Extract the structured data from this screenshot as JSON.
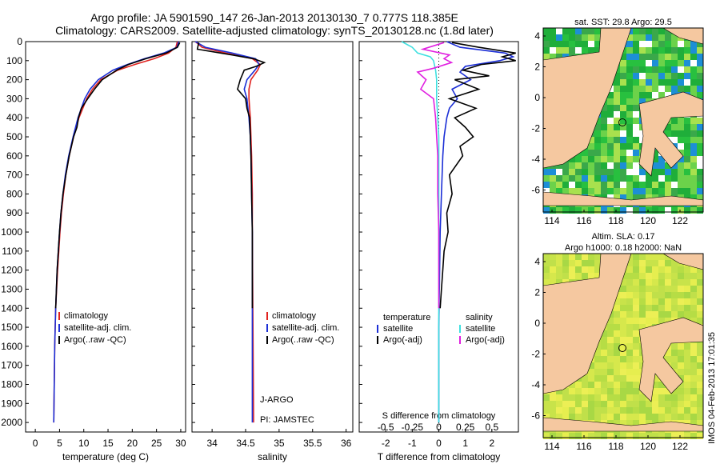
{
  "header": {
    "title_line1": "Argo profile: JA 5901590_147 26-Jan-2013 20130130_7 0.777S 118.385E",
    "title_line2": "Climatology: CARS2009. Satellite-adjusted climatology: synTS_20130128.nc (1.8d later)"
  },
  "colors": {
    "climatology": "#e0221f",
    "satellite": "#1c2fd6",
    "argo": "#000000",
    "satellite_s": "#3fe0e0",
    "argo_s": "#e020e0",
    "land": "#f5c8a0"
  },
  "chart_data": [
    {
      "type": "line",
      "xlabel": "temperature (deg C)",
      "ylim": [
        2050,
        0
      ],
      "xlim": [
        -2,
        31
      ],
      "xticks": [
        "0",
        "5",
        "10",
        "15",
        "20",
        "25",
        "30"
      ],
      "yticks": [
        "0",
        "100",
        "200",
        "300",
        "400",
        "500",
        "600",
        "700",
        "800",
        "900",
        "1000",
        "1100",
        "1200",
        "1300",
        "1400",
        "1500",
        "1600",
        "1700",
        "1800",
        "1900",
        "2000"
      ],
      "legend": [
        "climatology",
        "satellite-adj. clim.",
        "Argo(..raw -QC)"
      ],
      "series": [
        {
          "name": "climatology",
          "depth": [
            0,
            30,
            60,
            90,
            120,
            150,
            200,
            250,
            300,
            400,
            500,
            600,
            700,
            800,
            900,
            1000,
            1200,
            1400,
            1600,
            1800,
            2000
          ],
          "values": [
            29.3,
            29.0,
            27.5,
            24.5,
            20.5,
            17.0,
            13.5,
            11.8,
            10.6,
            9.0,
            7.9,
            7.0,
            6.3,
            5.8,
            5.4,
            5.1,
            4.6,
            4.2,
            4.0,
            3.9,
            3.8
          ]
        },
        {
          "name": "satellite-adj. clim.",
          "depth": [
            0,
            30,
            60,
            90,
            120,
            150,
            200,
            250,
            300,
            400,
            500,
            600,
            700,
            800,
            900,
            1000,
            1200,
            1400,
            1600,
            1800,
            2000
          ],
          "values": [
            29.6,
            29.2,
            26.5,
            22.5,
            19.0,
            16.0,
            13.0,
            11.3,
            10.2,
            8.8,
            7.8,
            6.9,
            6.2,
            5.7,
            5.3,
            5.0,
            4.5,
            4.2,
            4.0,
            3.9,
            3.8
          ]
        },
        {
          "name": "Argo(..raw -QC)",
          "depth": [
            5,
            30,
            60,
            90,
            120,
            150,
            200,
            250,
            300,
            350,
            400,
            450,
            500,
            600,
            700,
            800,
            900,
            1000,
            1200,
            1400
          ],
          "values": [
            29.8,
            29.3,
            27.0,
            22.8,
            19.2,
            16.8,
            13.8,
            12.2,
            10.8,
            9.5,
            8.9,
            8.6,
            7.9,
            7.0,
            6.3,
            5.7,
            5.3,
            5.0,
            4.5,
            4.2
          ]
        }
      ]
    },
    {
      "type": "line",
      "xlabel": "salinity",
      "ylim": [
        2050,
        0
      ],
      "xlim": [
        33.7,
        36.1
      ],
      "xticks": [
        "34",
        "34.5",
        "35",
        "35.5",
        "36"
      ],
      "legend": [
        "climatology",
        "satellite-adj. clim.",
        "Argo(..raw -QC)"
      ],
      "series": [
        {
          "name": "climatology",
          "depth": [
            0,
            30,
            60,
            90,
            120,
            150,
            200,
            250,
            300,
            400,
            500,
            600,
            800,
            1000,
            1500,
            2000
          ],
          "values": [
            33.75,
            33.85,
            34.2,
            34.6,
            34.72,
            34.68,
            34.58,
            34.55,
            34.55,
            34.57,
            34.58,
            34.59,
            34.6,
            34.6,
            34.61,
            34.62
          ]
        },
        {
          "name": "satellite-adj. clim.",
          "depth": [
            0,
            30,
            60,
            90,
            120,
            150,
            200,
            250,
            300,
            400,
            500,
            600,
            800,
            1000,
            1500,
            2000
          ],
          "values": [
            33.75,
            33.9,
            34.3,
            34.65,
            34.7,
            34.64,
            34.52,
            34.48,
            34.52,
            34.55,
            34.57,
            34.58,
            34.59,
            34.6,
            34.6,
            34.6
          ]
        },
        {
          "name": "Argo(..raw -QC)",
          "depth": [
            5,
            40,
            70,
            90,
            110,
            130,
            150,
            200,
            250,
            300,
            350,
            400,
            500,
            600,
            800,
            1000,
            1400
          ],
          "values": [
            33.8,
            33.78,
            34.3,
            34.62,
            34.78,
            34.66,
            34.48,
            34.42,
            34.38,
            34.5,
            34.52,
            34.56,
            34.57,
            34.58,
            34.59,
            34.6,
            34.6
          ]
        }
      ],
      "annotations": [
        "J-ARGO",
        "PI: JAMSTEC"
      ]
    },
    {
      "type": "line",
      "xlabel": "T difference from climatology",
      "xlabel_top": "S difference from climatology",
      "ylim": [
        2050,
        0
      ],
      "xlim": [
        -3,
        3
      ],
      "xticks": [
        "-2",
        "-1",
        "0",
        "1",
        "2"
      ],
      "sticks": [
        "-0.5",
        "-0.25",
        "0",
        "0.25",
        "0.5"
      ],
      "legend_left_title": "temperature",
      "legend_right_title": "salinity",
      "legend": [
        "satellite",
        "Argo(-adj)",
        "satellite",
        "Argo(-adj)"
      ],
      "series": [
        {
          "name": "satellite",
          "depth": [
            0,
            30,
            60,
            80,
            100,
            130,
            160,
            200,
            250,
            300,
            350,
            400,
            500,
            600,
            800,
            1000,
            1500,
            2000
          ],
          "values": [
            0.3,
            0.8,
            2.5,
            2.8,
            2.3,
            1.0,
            0.8,
            1.2,
            0.5,
            0.7,
            0.4,
            0.3,
            0.2,
            0.15,
            0.1,
            0.05,
            0.0,
            0.0
          ]
        },
        {
          "name": "Argo(-adj)",
          "depth": [
            5,
            30,
            60,
            80,
            100,
            120,
            150,
            180,
            200,
            250,
            300,
            350,
            400,
            450,
            500,
            550,
            600,
            700,
            800,
            900,
            1000,
            1100,
            1200,
            1300,
            1400
          ],
          "values": [
            0.5,
            1.5,
            2.9,
            2.4,
            2.9,
            1.6,
            0.9,
            1.9,
            0.6,
            1.5,
            0.4,
            1.4,
            0.6,
            1.0,
            1.3,
            0.8,
            0.9,
            0.4,
            0.5,
            0.3,
            0.35,
            0.2,
            0.15,
            0.1,
            0.05
          ]
        },
        {
          "name": "satellite",
          "depth": [
            0,
            30,
            60,
            80,
            100,
            150,
            200,
            300,
            400,
            500,
            600,
            800,
            1000,
            1500,
            2000
          ],
          "values": [
            -0.35,
            -0.25,
            -0.2,
            -0.08,
            -0.05,
            -0.03,
            -0.02,
            -0.02,
            -0.01,
            0.0,
            0.0,
            0.0,
            0.0,
            0.0,
            0.0
          ]
        },
        {
          "name": "Argo(-adj)",
          "depth": [
            5,
            40,
            70,
            90,
            110,
            140,
            160,
            200,
            250,
            300,
            400,
            500,
            600,
            800,
            1000,
            1400
          ],
          "values": [
            0.05,
            -0.15,
            0.1,
            0.05,
            0.12,
            -0.05,
            -0.2,
            -0.12,
            -0.17,
            -0.05,
            -0.03,
            -0.02,
            -0.01,
            -0.01,
            0.0,
            0.0
          ]
        }
      ]
    }
  ],
  "maps": {
    "top_title": "sat. SST: 29.8 Argo: 29.5",
    "bottom_title_line1": "Altim. SLA: 0.17",
    "bottom_title_line2": "Argo h1000: 0.18 h2000: NaN",
    "xticks": [
      "114",
      "116",
      "118",
      "120",
      "122"
    ],
    "yticks": [
      "4",
      "2",
      "0",
      "-2",
      "-4",
      "-6"
    ]
  },
  "footer": {
    "timestamp": "IMOS 04-Feb-2013 17:01:35"
  }
}
